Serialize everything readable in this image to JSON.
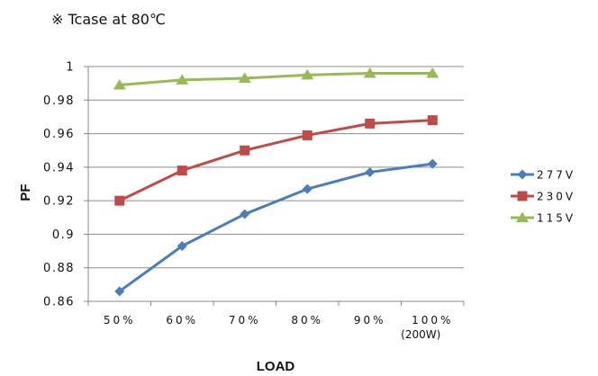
{
  "chart_data": {
    "type": "line",
    "note": "※ Tcase at 80℃",
    "xlabel": "LOAD",
    "ylabel": "PF",
    "categories": [
      "50%",
      "60%",
      "70%",
      "80%",
      "90%",
      "100%"
    ],
    "category_sublabels": [
      "",
      "",
      "",
      "",
      "",
      "(200W)"
    ],
    "ylim": [
      0.86,
      1.0
    ],
    "yticks": [
      0.86,
      0.88,
      0.9,
      0.92,
      0.94,
      0.96,
      0.98,
      1
    ],
    "ytick_labels": [
      "0.86",
      "0.88",
      "0.9",
      "0.92",
      "0.94",
      "0.96",
      "0.98",
      "1"
    ],
    "grid": true,
    "legend_position": "right",
    "series": [
      {
        "name": "277V",
        "color": "#4a7ebb",
        "marker": "diamond",
        "values": [
          0.866,
          0.893,
          0.912,
          0.927,
          0.937,
          0.942
        ]
      },
      {
        "name": "230V",
        "color": "#be4b48",
        "marker": "square",
        "values": [
          0.92,
          0.938,
          0.95,
          0.959,
          0.966,
          0.968
        ]
      },
      {
        "name": "115V",
        "color": "#98b954",
        "marker": "triangle",
        "values": [
          0.989,
          0.992,
          0.993,
          0.995,
          0.996,
          0.996
        ]
      }
    ]
  }
}
